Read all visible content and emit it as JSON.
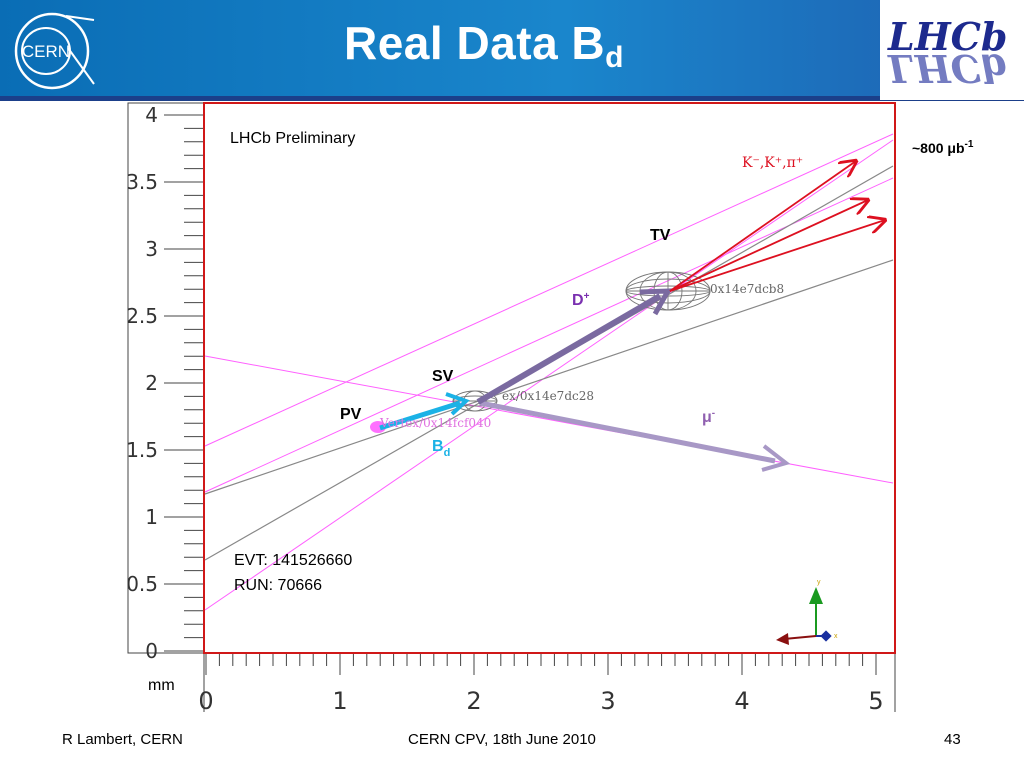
{
  "header": {
    "title": "Real Data B",
    "title_sub": "d",
    "cern_logo_text": "CERN",
    "lhcb_logo_text": "LHCb"
  },
  "plot": {
    "label_preliminary": "LHCb Preliminary",
    "luminosity": "~800 μb",
    "luminosity_sup": "-1",
    "tracks_label": "K⁻,K⁺,π⁺",
    "tv": "TV",
    "dplus": "D",
    "dplus_sup": "+",
    "sv": "SV",
    "pv": "PV",
    "bd": "B",
    "bd_sub": "d",
    "mu": "μ",
    "mu_sup": "-",
    "vertex_tv": "0x14e7dcb8",
    "vertex_sv": "ex/0x14e7dc28",
    "vertex_pv": "Vertex/0x14fcf040",
    "evt": "EVT: 141526660",
    "run": "RUN: 70666",
    "unit": "mm",
    "y_ticks": [
      "4",
      "3.5",
      "3",
      "2.5",
      "2",
      "1.5",
      "1",
      "0.5",
      "0"
    ],
    "x_ticks": [
      "0",
      "1",
      "2",
      "3",
      "4",
      "5"
    ],
    "axis_mini": {
      "y": "y",
      "x": "x"
    }
  },
  "footer": {
    "author": "R Lambert, CERN",
    "event": "CERN CPV, 18th June 2010",
    "page": "43"
  },
  "colors": {
    "header": "#1a86cc",
    "frame": "#d01818",
    "tracks": "#dd1020",
    "magenta": "#ff50ff",
    "bd_arrow": "#1bb2e6",
    "d_arrow": "#7a6aa0",
    "mu_arrow": "#a898c6"
  }
}
